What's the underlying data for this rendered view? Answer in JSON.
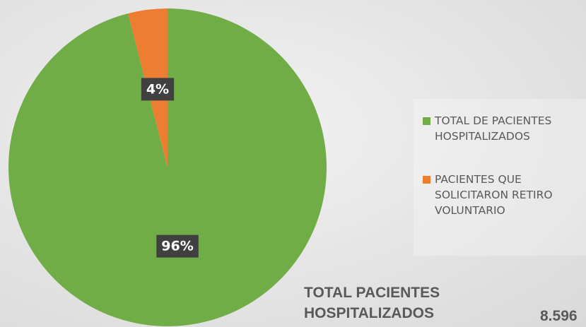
{
  "chart_data": {
    "type": "pie",
    "categories": [
      "TOTAL DE PACIENTES HOSPITALIZADOS",
      "PACIENTES QUE SOLICITARON RETIRO VOLUNTARIO"
    ],
    "values": [
      96,
      4
    ],
    "value_labels": [
      "96%",
      "4%"
    ],
    "colors": [
      "#70ad47",
      "#ed7d31"
    ],
    "legend": "right",
    "annotation": {
      "label": "TOTAL PACIENTES HOSPITALIZADOS",
      "value": "8.596"
    }
  }
}
